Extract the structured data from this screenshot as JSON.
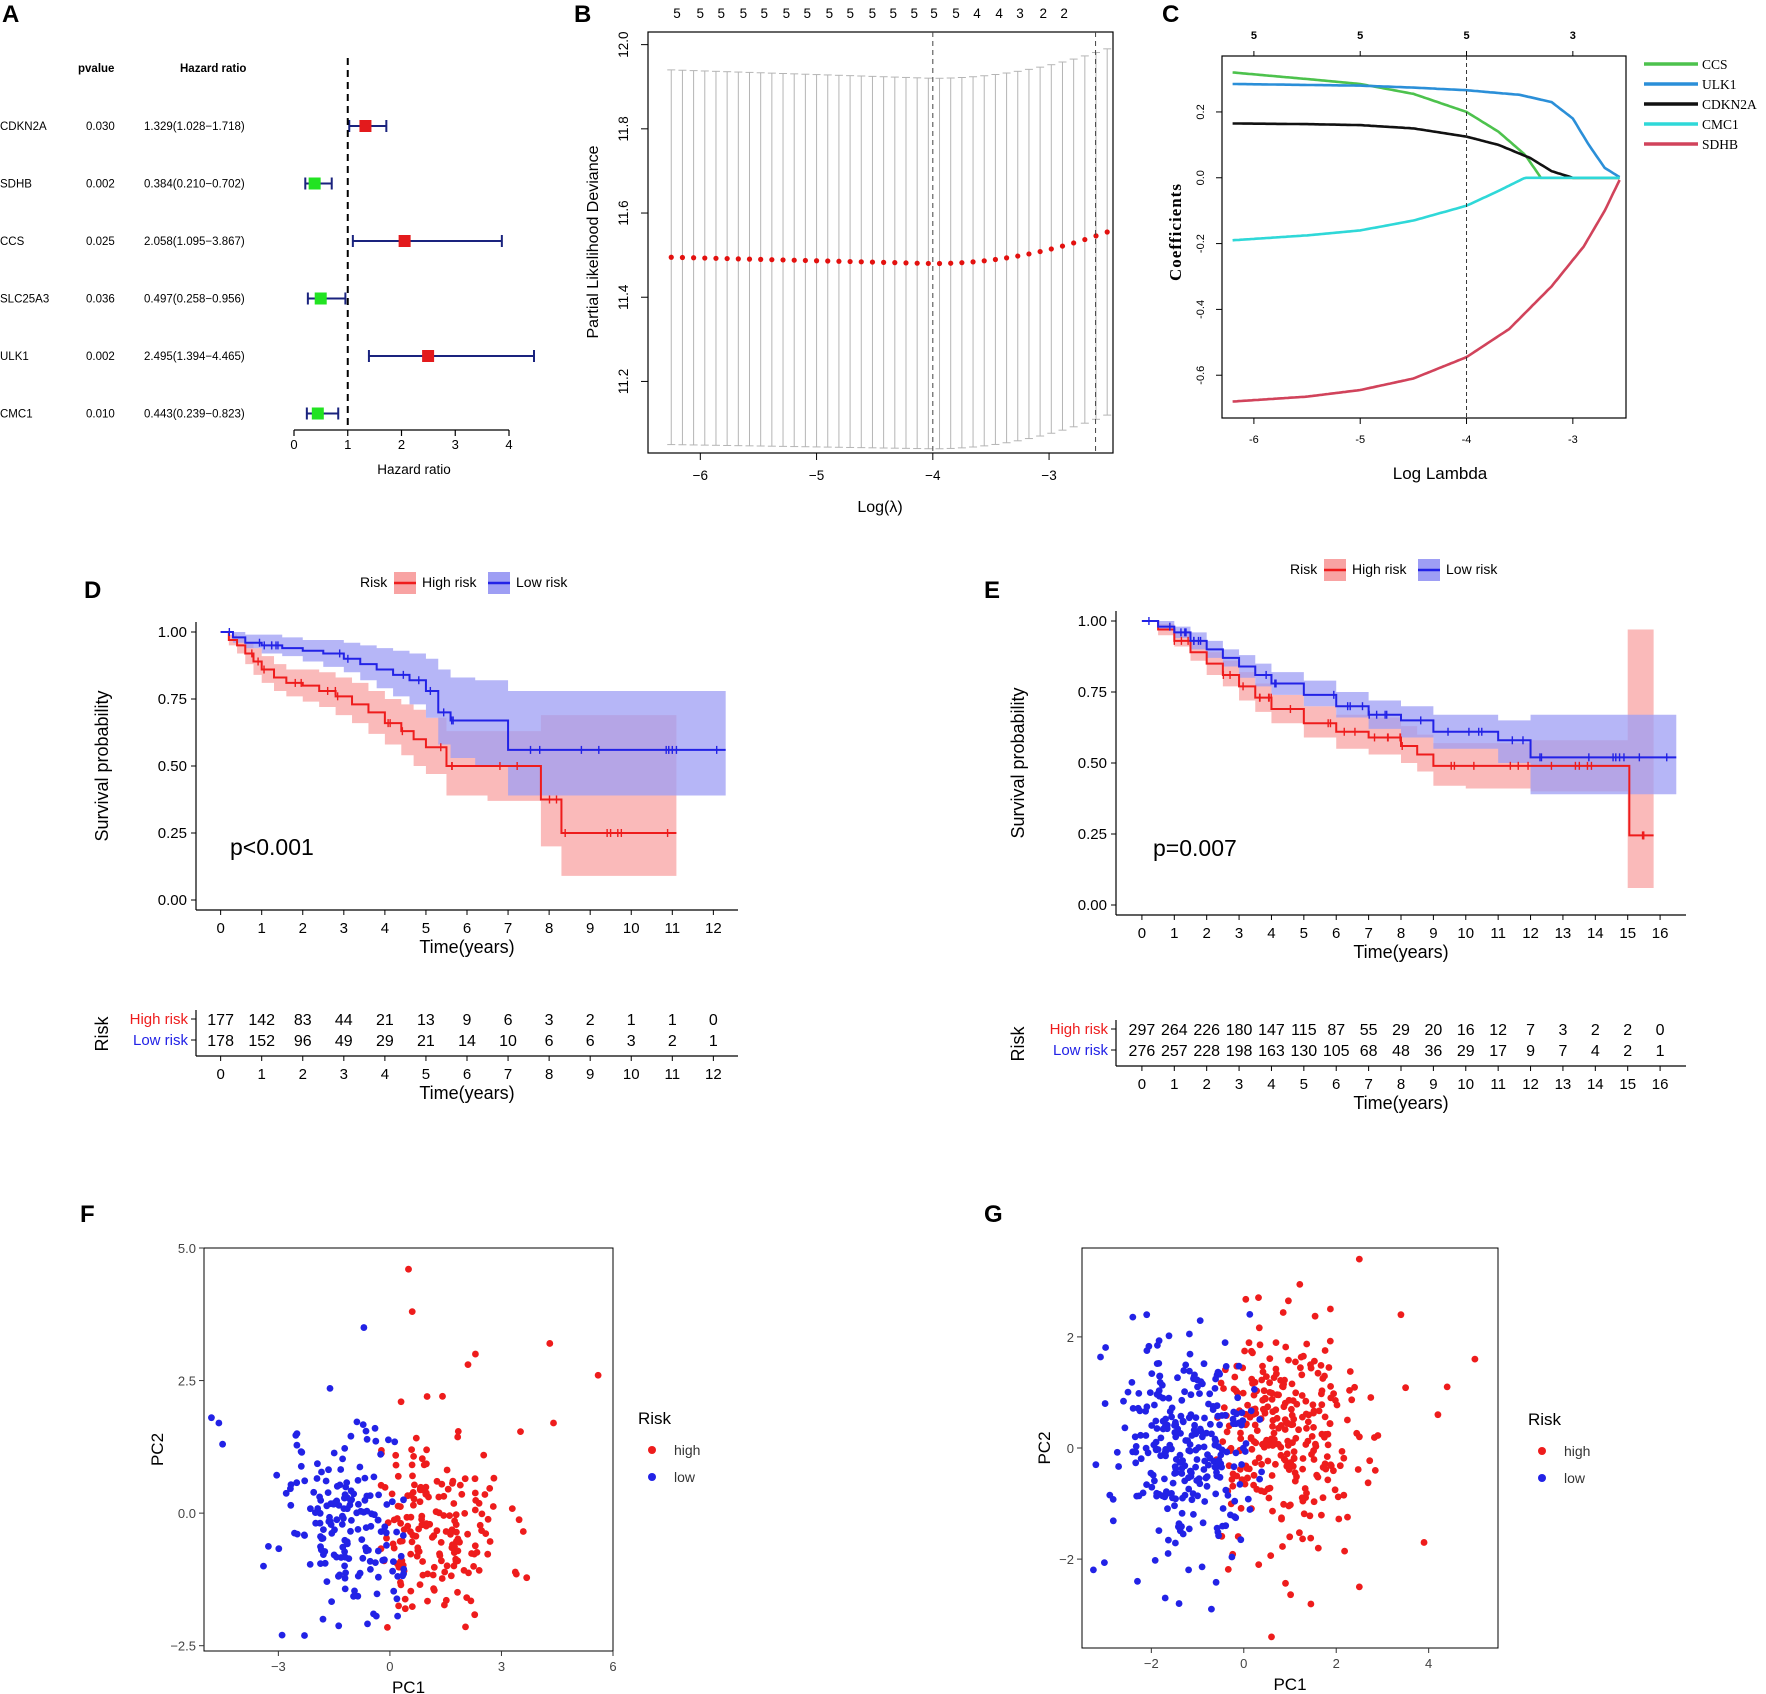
{
  "chart_data": [
    {
      "panel": "A",
      "type": "forest",
      "headers": {
        "pvalue": "pvalue",
        "hr": "Hazard ratio"
      },
      "xlabel": "Hazard ratio",
      "xlim": [
        0,
        4
      ],
      "xticks": [
        0,
        1,
        2,
        3,
        4
      ],
      "reference": 1,
      "rows": [
        {
          "gene": "CDKN2A",
          "pvalue": "0.030",
          "hr_text": "1.329(1.028−1.718)",
          "hr": 1.329,
          "lo": 1.028,
          "hi": 1.718,
          "color": "#e31a1c"
        },
        {
          "gene": "SDHB",
          "pvalue": "0.002",
          "hr_text": "0.384(0.210−0.702)",
          "hr": 0.384,
          "lo": 0.21,
          "hi": 0.702,
          "color": "#22e322"
        },
        {
          "gene": "CCS",
          "pvalue": "0.025",
          "hr_text": "2.058(1.095−3.867)",
          "hr": 2.058,
          "lo": 1.095,
          "hi": 3.867,
          "color": "#e31a1c"
        },
        {
          "gene": "SLC25A3",
          "pvalue": "0.036",
          "hr_text": "0.497(0.258−0.956)",
          "hr": 0.497,
          "lo": 0.258,
          "hi": 0.956,
          "color": "#22e322"
        },
        {
          "gene": "ULK1",
          "pvalue": "0.002",
          "hr_text": "2.495(1.394−4.465)",
          "hr": 2.495,
          "lo": 1.394,
          "hi": 4.465,
          "color": "#e31a1c"
        },
        {
          "gene": "CMC1",
          "pvalue": "0.010",
          "hr_text": "0.443(0.239−0.823)",
          "hr": 0.443,
          "lo": 0.239,
          "hi": 0.823,
          "color": "#22e322"
        }
      ]
    },
    {
      "panel": "B",
      "type": "cv-deviance",
      "xlabel": "Log(λ)",
      "ylabel": "Partial Likelihood Deviance",
      "xlim": [
        -6.45,
        -2.45
      ],
      "ylim": [
        11.03,
        12.03
      ],
      "xticks": [
        -6,
        -5,
        -4,
        -3
      ],
      "yticks": [
        "11.2",
        "11.4",
        "11.6",
        "11.8",
        "12.0"
      ],
      "top_counts": [
        "5",
        "5",
        "5",
        "5",
        "5",
        "5",
        "5",
        "5",
        "5",
        "5",
        "5",
        "5",
        "5",
        "5",
        "4",
        "4",
        "3",
        "2",
        "2"
      ],
      "top_count_positions": [
        -6.2,
        -6.0,
        -5.82,
        -5.63,
        -5.45,
        -5.26,
        -5.08,
        -4.89,
        -4.71,
        -4.52,
        -4.34,
        -4.16,
        -3.99,
        -3.8,
        -3.62,
        -3.43,
        -3.25,
        -3.05,
        -2.87
      ],
      "lambda_min": -4.0,
      "lambda_1se": -2.6,
      "n_points": 40,
      "lambda_start": -6.25,
      "lambda_end": -2.5,
      "deviance_min": 11.48,
      "deviance_start": 11.495,
      "deviance_end": 11.555,
      "ci_lower_start": 11.05,
      "ci_lower_min": 11.04,
      "ci_lower_end": 11.12,
      "ci_upper_start": 11.94,
      "ci_upper_min": 11.92,
      "ci_upper_end": 11.99
    },
    {
      "panel": "C",
      "type": "line",
      "xlabel": "Log Lambda",
      "ylabel": "Coefficients",
      "xlim": [
        -6.3,
        -2.5
      ],
      "ylim": [
        -0.73,
        0.37
      ],
      "xticks": [
        -6,
        -5,
        -4,
        -3
      ],
      "yticks": [
        0.2,
        0.0,
        -0.2,
        -0.4,
        -0.6
      ],
      "ytick_labels": [
        "0.2",
        "0.0",
        "-0.2",
        "-0.4",
        "-0.6"
      ],
      "top_labels": [
        "5",
        "5",
        "5",
        "3"
      ],
      "top_label_positions": [
        -6.0,
        -5.0,
        -4.0,
        -3.0
      ],
      "vline": -4.0,
      "series": [
        {
          "name": "CCS",
          "color": "#4dc24d",
          "x": [
            -6.2,
            -5.5,
            -5.0,
            -4.5,
            -4.0,
            -3.7,
            -3.45,
            -3.3,
            -2.9,
            -2.55
          ],
          "y": [
            0.32,
            0.3,
            0.285,
            0.255,
            0.2,
            0.14,
            0.07,
            0.0,
            0.0,
            0.0
          ]
        },
        {
          "name": "ULK1",
          "color": "#2b8fd8",
          "x": [
            -6.2,
            -5.5,
            -5.0,
            -4.5,
            -4.0,
            -3.5,
            -3.2,
            -3.0,
            -2.85,
            -2.7,
            -2.55
          ],
          "y": [
            0.285,
            0.282,
            0.28,
            0.274,
            0.266,
            0.252,
            0.23,
            0.18,
            0.1,
            0.03,
            0.0
          ]
        },
        {
          "name": "CDKN2A",
          "color": "#111111",
          "x": [
            -6.2,
            -5.5,
            -5.0,
            -4.5,
            -4.0,
            -3.7,
            -3.4,
            -3.2,
            -3.0,
            -2.55
          ],
          "y": [
            0.165,
            0.163,
            0.16,
            0.15,
            0.125,
            0.1,
            0.06,
            0.02,
            0.0,
            0.0
          ]
        },
        {
          "name": "CMC1",
          "color": "#2fd8d8",
          "x": [
            -6.2,
            -5.5,
            -5.0,
            -4.5,
            -4.0,
            -3.7,
            -3.45,
            -3.0,
            -2.55
          ],
          "y": [
            -0.19,
            -0.175,
            -0.16,
            -0.13,
            -0.085,
            -0.04,
            0.0,
            0.0,
            0.0
          ]
        },
        {
          "name": "SDHB",
          "color": "#d1435b",
          "x": [
            -6.2,
            -5.5,
            -5.0,
            -4.5,
            -4.0,
            -3.6,
            -3.2,
            -2.9,
            -2.7,
            -2.55
          ],
          "y": [
            -0.68,
            -0.665,
            -0.645,
            -0.61,
            -0.545,
            -0.46,
            -0.33,
            -0.21,
            -0.1,
            0.0
          ]
        }
      ]
    },
    {
      "panel": "D",
      "type": "kaplan-meier",
      "legend_title": "Risk",
      "series_names": [
        "High risk",
        "Low risk"
      ],
      "colors": [
        "#ee1c1c",
        "#2222e6"
      ],
      "band_colors": [
        "#f8a3a3",
        "#9e9ef4"
      ],
      "ylabel": "Survival probability",
      "xlabel": "Time(years)",
      "xlim": [
        -0.6,
        12.6
      ],
      "xticks": [
        0,
        1,
        2,
        3,
        4,
        5,
        6,
        7,
        8,
        9,
        10,
        11,
        12
      ],
      "ylim": [
        0,
        1
      ],
      "yticks": [
        "0.00",
        "0.25",
        "0.50",
        "0.75",
        "1.00"
      ],
      "pvalue": "p<0.001",
      "high_curve": {
        "t": [
          0,
          0.2,
          0.4,
          0.6,
          0.8,
          1.0,
          1.3,
          1.6,
          2.0,
          2.4,
          2.8,
          3.2,
          3.6,
          4.0,
          4.4,
          4.7,
          5.0,
          5.5,
          6.5,
          7.8,
          8.3,
          11.1
        ],
        "s": [
          1.0,
          0.97,
          0.95,
          0.92,
          0.89,
          0.86,
          0.83,
          0.81,
          0.8,
          0.78,
          0.76,
          0.73,
          0.7,
          0.66,
          0.63,
          0.6,
          0.57,
          0.5,
          0.5,
          0.375,
          0.25,
          0.25
        ]
      },
      "high_band_lower": [
        1.0,
        0.95,
        0.92,
        0.88,
        0.84,
        0.81,
        0.78,
        0.76,
        0.74,
        0.72,
        0.69,
        0.66,
        0.62,
        0.58,
        0.54,
        0.5,
        0.47,
        0.39,
        0.37,
        0.2,
        0.09,
        0.09
      ],
      "high_band_upper": [
        1.0,
        0.99,
        0.98,
        0.96,
        0.94,
        0.91,
        0.88,
        0.86,
        0.86,
        0.85,
        0.83,
        0.81,
        0.78,
        0.75,
        0.73,
        0.71,
        0.68,
        0.63,
        0.63,
        0.69,
        0.69,
        0.69
      ],
      "low_curve": {
        "t": [
          0,
          0.3,
          0.6,
          1.0,
          1.5,
          2.0,
          2.5,
          3.0,
          3.4,
          3.8,
          4.2,
          4.6,
          5.0,
          5.3,
          5.6,
          6.2,
          7.0,
          7.5,
          9.0,
          12.3
        ],
        "s": [
          1.0,
          0.98,
          0.96,
          0.95,
          0.94,
          0.93,
          0.92,
          0.9,
          0.88,
          0.86,
          0.84,
          0.82,
          0.78,
          0.7,
          0.67,
          0.67,
          0.56,
          0.56,
          0.56,
          0.56
        ]
      },
      "low_band_lower": [
        1.0,
        0.96,
        0.94,
        0.92,
        0.91,
        0.89,
        0.87,
        0.85,
        0.82,
        0.79,
        0.76,
        0.73,
        0.68,
        0.58,
        0.53,
        0.5,
        0.39,
        0.39,
        0.39,
        0.39
      ],
      "low_band_upper": [
        1.0,
        1.0,
        0.99,
        0.99,
        0.98,
        0.97,
        0.97,
        0.96,
        0.95,
        0.94,
        0.93,
        0.92,
        0.9,
        0.86,
        0.83,
        0.82,
        0.78,
        0.78,
        0.78,
        0.78
      ],
      "risk_table": {
        "label": "Risk",
        "rows": [
          {
            "name": "High risk",
            "values": [
              "177",
              "142",
              "83",
              "44",
              "21",
              "13",
              "9",
              "6",
              "3",
              "2",
              "1",
              "1",
              "0"
            ]
          },
          {
            "name": "Low risk",
            "values": [
              "178",
              "152",
              "96",
              "49",
              "29",
              "21",
              "14",
              "10",
              "6",
              "6",
              "3",
              "2",
              "1"
            ]
          }
        ]
      }
    },
    {
      "panel": "E",
      "type": "kaplan-meier",
      "legend_title": "Risk",
      "series_names": [
        "High risk",
        "Low risk"
      ],
      "colors": [
        "#ee1c1c",
        "#2222e6"
      ],
      "band_colors": [
        "#f8a3a3",
        "#9e9ef4"
      ],
      "ylabel": "Survival probability",
      "xlabel": "Time(years)",
      "xlim": [
        -0.8,
        16.8
      ],
      "xticks": [
        0,
        1,
        2,
        3,
        4,
        5,
        6,
        7,
        8,
        9,
        10,
        11,
        12,
        13,
        14,
        15,
        16
      ],
      "ylim": [
        0,
        1
      ],
      "yticks": [
        "0.00",
        "0.25",
        "0.50",
        "0.75",
        "1.00"
      ],
      "pvalue": "p=0.007",
      "high_curve": {
        "t": [
          0,
          0.5,
          1.0,
          1.5,
          2.0,
          2.5,
          3.0,
          3.5,
          4.0,
          5.0,
          6.0,
          7.0,
          8.0,
          8.5,
          9.0,
          10.0,
          12.0,
          14.0,
          15.0,
          15.05,
          15.8
        ],
        "s": [
          1.0,
          0.97,
          0.93,
          0.89,
          0.85,
          0.81,
          0.77,
          0.73,
          0.69,
          0.64,
          0.61,
          0.59,
          0.56,
          0.53,
          0.49,
          0.49,
          0.49,
          0.49,
          0.49,
          0.245,
          0.245
        ]
      },
      "high_band_lower": [
        1.0,
        0.95,
        0.91,
        0.86,
        0.81,
        0.77,
        0.72,
        0.68,
        0.64,
        0.59,
        0.55,
        0.53,
        0.5,
        0.47,
        0.42,
        0.41,
        0.4,
        0.4,
        0.06,
        0.06,
        0.06
      ],
      "high_band_upper": [
        1.0,
        0.99,
        0.96,
        0.93,
        0.89,
        0.86,
        0.82,
        0.78,
        0.74,
        0.7,
        0.67,
        0.66,
        0.63,
        0.6,
        0.57,
        0.57,
        0.58,
        0.58,
        0.97,
        0.97,
        0.97
      ],
      "low_curve": {
        "t": [
          0,
          0.5,
          1.0,
          1.5,
          2.0,
          2.5,
          3.0,
          3.5,
          4.0,
          5.0,
          6.0,
          7.0,
          8.0,
          9.0,
          10.0,
          11.0,
          12.0,
          13.0,
          14.0,
          15.0,
          16.5
        ],
        "s": [
          1.0,
          0.98,
          0.96,
          0.93,
          0.9,
          0.87,
          0.84,
          0.81,
          0.78,
          0.74,
          0.7,
          0.67,
          0.65,
          0.61,
          0.61,
          0.58,
          0.52,
          0.52,
          0.52,
          0.52,
          0.52
        ]
      },
      "low_band_lower": [
        1.0,
        0.97,
        0.94,
        0.9,
        0.87,
        0.84,
        0.8,
        0.77,
        0.74,
        0.7,
        0.66,
        0.62,
        0.59,
        0.55,
        0.55,
        0.5,
        0.39,
        0.39,
        0.39,
        0.39,
        0.39
      ],
      "low_band_upper": [
        1.0,
        1.0,
        0.98,
        0.96,
        0.93,
        0.9,
        0.88,
        0.85,
        0.82,
        0.79,
        0.75,
        0.72,
        0.7,
        0.67,
        0.67,
        0.65,
        0.67,
        0.67,
        0.67,
        0.67,
        0.67
      ],
      "risk_table": {
        "label": "Risk",
        "rows": [
          {
            "name": "High risk",
            "values": [
              "297",
              "264",
              "226",
              "180",
              "147",
              "115",
              "87",
              "55",
              "29",
              "20",
              "16",
              "12",
              "7",
              "3",
              "2",
              "2",
              "0"
            ]
          },
          {
            "name": "Low risk",
            "values": [
              "276",
              "257",
              "228",
              "198",
              "163",
              "130",
              "105",
              "68",
              "48",
              "36",
              "29",
              "17",
              "9",
              "7",
              "4",
              "2",
              "1"
            ]
          }
        ]
      }
    },
    {
      "panel": "F",
      "type": "scatter",
      "xlabel": "PC1",
      "ylabel": "PC2",
      "xlim": [
        -5.0,
        6.0
      ],
      "ylim": [
        -2.6,
        5.0
      ],
      "xticks": [
        -3,
        0,
        3,
        6
      ],
      "xtick_labels": [
        "−3",
        "0",
        "3",
        "6"
      ],
      "yticks": [
        -2.5,
        0.0,
        2.5,
        5.0
      ],
      "ytick_labels": [
        "−2.5",
        "0.0",
        "2.5",
        "5.0"
      ],
      "legend_title": "Risk",
      "groups": [
        {
          "name": "high",
          "color": "#ee1c1c",
          "n": 180,
          "cx": 1.2,
          "cy": -0.25,
          "sx": 1.0,
          "sy": 0.9,
          "seed": 11,
          "xmin": -0.3,
          "extra": [
            [
              0.5,
              4.6
            ],
            [
              0.6,
              3.8
            ],
            [
              2.3,
              3.0
            ],
            [
              2.1,
              2.8
            ],
            [
              4.3,
              3.2
            ],
            [
              5.6,
              2.6
            ],
            [
              4.4,
              1.7
            ],
            [
              1.0,
              2.2
            ],
            [
              0.3,
              2.1
            ]
          ]
        },
        {
          "name": "low",
          "color": "#2222e6",
          "n": 170,
          "cx": -1.1,
          "cy": -0.15,
          "sx": 0.9,
          "sy": 0.9,
          "seed": 27,
          "xmax": 0.4,
          "extra": [
            [
              -4.8,
              1.8
            ],
            [
              -4.6,
              1.7
            ],
            [
              -4.5,
              1.3
            ],
            [
              -0.7,
              3.5
            ],
            [
              -3.4,
              -1.0
            ],
            [
              -2.9,
              -2.3
            ],
            [
              -1.8,
              -2.0
            ],
            [
              -0.4,
              1.6
            ],
            [
              -2.5,
              1.5
            ]
          ]
        }
      ]
    },
    {
      "panel": "G",
      "type": "scatter",
      "xlabel": "PC1",
      "ylabel": "PC2",
      "xlim": [
        -3.5,
        5.5
      ],
      "ylim": [
        -3.6,
        3.6
      ],
      "xticks": [
        -2,
        0,
        2,
        4
      ],
      "xtick_labels": [
        "−2",
        "0",
        "2",
        "4"
      ],
      "yticks": [
        -2,
        0,
        2
      ],
      "ytick_labels": [
        "−2",
        "0",
        "2"
      ],
      "legend_title": "Risk",
      "groups": [
        {
          "name": "high",
          "color": "#ee1c1c",
          "n": 300,
          "cx": 0.9,
          "cy": 0.2,
          "sx": 0.95,
          "sy": 1.0,
          "seed": 53,
          "xmin": -0.6,
          "extra": [
            [
              2.5,
              3.4
            ],
            [
              3.4,
              2.4
            ],
            [
              5.0,
              1.6
            ],
            [
              4.4,
              1.1
            ],
            [
              4.2,
              0.6
            ],
            [
              3.9,
              -1.7
            ],
            [
              0.6,
              -3.4
            ],
            [
              2.5,
              -2.5
            ]
          ]
        },
        {
          "name": "low",
          "color": "#2222e6",
          "n": 280,
          "cx": -1.2,
          "cy": 0.0,
          "sx": 0.85,
          "sy": 1.0,
          "seed": 71,
          "xmax": 0.4,
          "extra": [
            [
              -2.1,
              2.4
            ],
            [
              -3.0,
              0.8
            ],
            [
              -3.2,
              -0.3
            ],
            [
              -1.7,
              -2.7
            ],
            [
              -1.4,
              -2.8
            ],
            [
              -0.7,
              -2.9
            ],
            [
              -2.3,
              -2.4
            ]
          ]
        }
      ]
    }
  ]
}
